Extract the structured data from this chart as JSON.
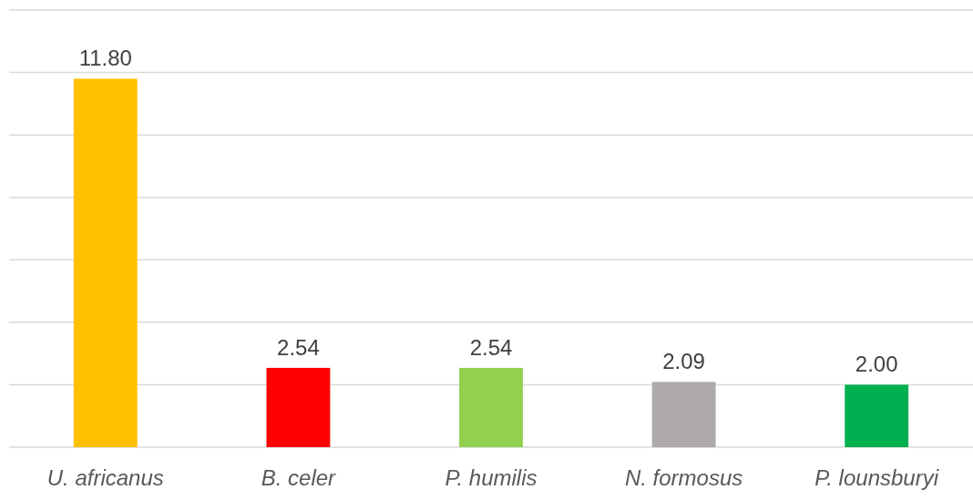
{
  "chart_data": {
    "type": "bar",
    "categories": [
      "U. africanus",
      "B. celer",
      "P. humilis",
      "N. formosus",
      "P. lounsburyi"
    ],
    "values": [
      11.8,
      2.54,
      2.54,
      2.09,
      2.0
    ],
    "value_labels": [
      "11.80",
      "2.54",
      "2.54",
      "2.09",
      "2.00"
    ],
    "colors": [
      "#ffc000",
      "#ff0000",
      "#92d050",
      "#aeaaaa",
      "#00b050"
    ],
    "ylim": [
      0,
      14
    ],
    "yticks": [
      {
        "value": 0,
        "label": null
      },
      {
        "value": 2,
        "label": null
      },
      {
        "value": 4,
        "label": null
      },
      {
        "value": 6,
        "label": null
      },
      {
        "value": 8,
        "label": null
      },
      {
        "value": 10,
        "label": null
      },
      {
        "value": 12,
        "label": null
      },
      {
        "value": 14,
        "label": null
      }
    ],
    "grid": "y",
    "tick_labels": "x"
  }
}
